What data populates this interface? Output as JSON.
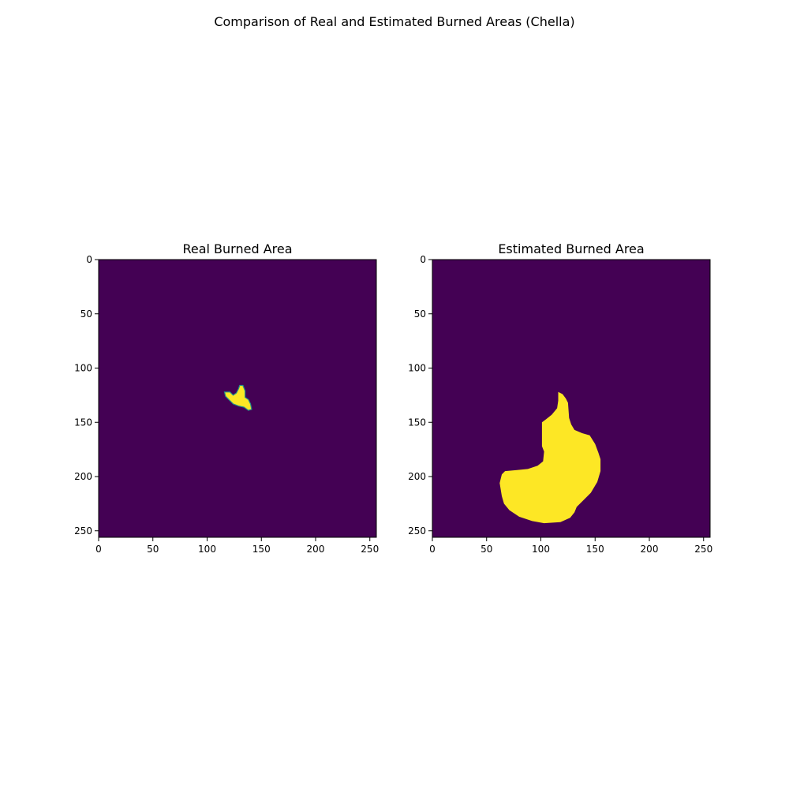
{
  "figure": {
    "suptitle": "Comparison of Real and Estimated Burned Areas (Chella)"
  },
  "colors": {
    "background_class": "#440154",
    "burned_class": "#fde725",
    "edge_class": "#21918c",
    "axis": "#000000"
  },
  "chart_data": [
    {
      "type": "heatmap",
      "title": "Real Burned Area",
      "xlabel": "",
      "ylabel": "",
      "xlim": [
        0,
        256
      ],
      "ylim": [
        256,
        0
      ],
      "xticks": [
        0,
        50,
        100,
        150,
        200,
        250
      ],
      "yticks": [
        0,
        50,
        100,
        150,
        200,
        250
      ],
      "colormap": "viridis",
      "value_range": [
        0,
        1
      ],
      "background_value": 0,
      "regions": [
        {
          "value": 1,
          "outline": [
            [
              116,
              122
            ],
            [
              121,
              122
            ],
            [
              124,
              125
            ],
            [
              127,
              123
            ],
            [
              129,
              119
            ],
            [
              130,
              116
            ],
            [
              133,
              116
            ],
            [
              135,
              121
            ],
            [
              135,
              127
            ],
            [
              138,
              129
            ],
            [
              140,
              133
            ],
            [
              141,
              138
            ],
            [
              138,
              139
            ],
            [
              134,
              136
            ],
            [
              129,
              135
            ],
            [
              124,
              133
            ],
            [
              120,
              129
            ],
            [
              117,
              126
            ]
          ]
        }
      ]
    },
    {
      "type": "heatmap",
      "title": "Estimated Burned Area",
      "xlabel": "",
      "ylabel": "",
      "xlim": [
        0,
        256
      ],
      "ylim": [
        256,
        0
      ],
      "xticks": [
        0,
        50,
        100,
        150,
        200,
        250
      ],
      "yticks": [
        0,
        50,
        100,
        150,
        200,
        250
      ],
      "colormap": "viridis",
      "value_range": [
        0,
        1
      ],
      "background_value": 0,
      "regions": [
        {
          "value": 1,
          "outline": [
            [
              116,
              122
            ],
            [
              120,
              124
            ],
            [
              123,
              128
            ],
            [
              125,
              132
            ],
            [
              126,
              146
            ],
            [
              128,
              152
            ],
            [
              131,
              157
            ],
            [
              138,
              160
            ],
            [
              145,
              162
            ],
            [
              150,
              170
            ],
            [
              153,
              178
            ],
            [
              155,
              184
            ],
            [
              155,
              195
            ],
            [
              152,
              205
            ],
            [
              146,
              215
            ],
            [
              138,
              223
            ],
            [
              133,
              228
            ],
            [
              131,
              233
            ],
            [
              127,
              238
            ],
            [
              118,
              242
            ],
            [
              103,
              243
            ],
            [
              92,
              241
            ],
            [
              80,
              237
            ],
            [
              71,
              231
            ],
            [
              66,
              225
            ],
            [
              64,
              218
            ],
            [
              62,
              206
            ],
            [
              64,
              198
            ],
            [
              67,
              195
            ],
            [
              78,
              194
            ],
            [
              88,
              193
            ],
            [
              97,
              190
            ],
            [
              102,
              186
            ],
            [
              103,
              177
            ],
            [
              101,
              172
            ],
            [
              101,
              150
            ],
            [
              105,
              147
            ],
            [
              110,
              143
            ],
            [
              115,
              137
            ],
            [
              116,
              130
            ]
          ]
        }
      ]
    }
  ]
}
